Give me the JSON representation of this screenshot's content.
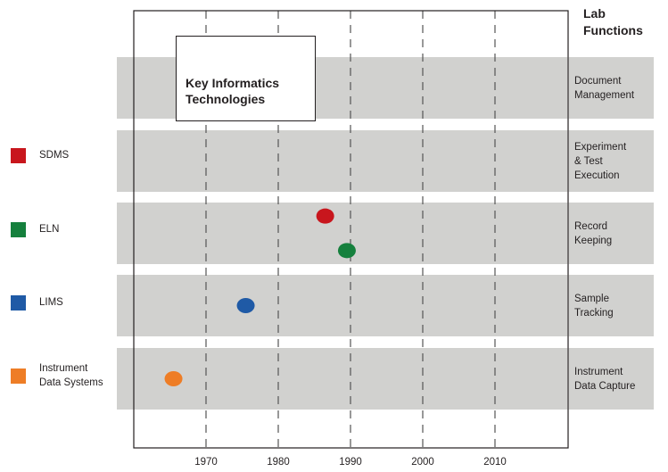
{
  "chart_data": {
    "type": "scatter",
    "title": "Key Informatics\nTechnologies",
    "y_header": "Lab\nFunctions",
    "xlim": [
      1960,
      2020
    ],
    "x_ticks": [
      1970,
      1980,
      1990,
      2000,
      2010
    ],
    "x_tick_labels": [
      "1970",
      "1980",
      "1990",
      "2000",
      "2010"
    ],
    "x_gridlines": "dashed",
    "functions": [
      "Document\nManagement",
      "Experiment\n& Test\nExecution",
      "Record\nKeeping",
      "Sample\nTracking",
      "Instrument\nData Capture"
    ],
    "legend_position": "left",
    "series": [
      {
        "name": "SDMS",
        "color": "#c8161d",
        "points": [
          {
            "x": 1986.5,
            "function": "Record\nKeeping",
            "row_offset": -0.28
          }
        ]
      },
      {
        "name": "ELN",
        "color": "#15803d",
        "points": [
          {
            "x": 1989.5,
            "function": "Record\nKeeping",
            "row_offset": 0.28
          }
        ]
      },
      {
        "name": "LIMS",
        "color": "#1f5aa6",
        "points": [
          {
            "x": 1975.5,
            "function": "Sample\nTracking",
            "row_offset": 0
          }
        ]
      },
      {
        "name": "Instrument\nData Systems",
        "color": "#ee7d26",
        "points": [
          {
            "x": 1965.5,
            "function": "Instrument\nData Capture",
            "row_offset": 0
          }
        ]
      }
    ]
  }
}
